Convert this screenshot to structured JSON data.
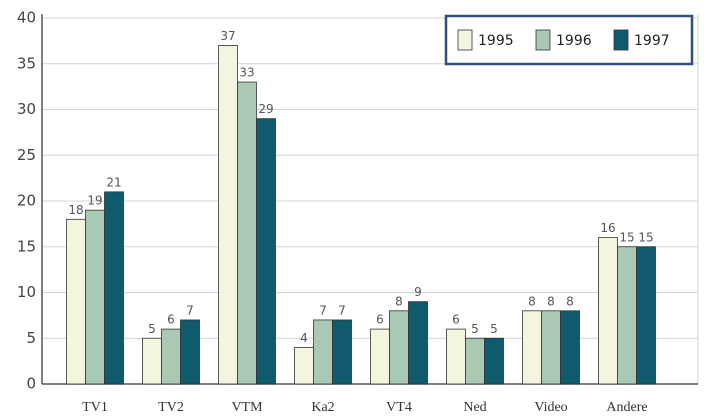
{
  "chart_data": {
    "type": "bar",
    "categories": [
      "TV1",
      "TV2",
      "VTM",
      "Ka2",
      "VT4",
      "Ned",
      "Video",
      "Andere"
    ],
    "series": [
      {
        "name": "1995",
        "color": "#f3f5de",
        "values": [
          18,
          5,
          37,
          4,
          6,
          6,
          8,
          16
        ]
      },
      {
        "name": "1996",
        "color": "#a9c9b5",
        "values": [
          19,
          6,
          33,
          7,
          8,
          5,
          8,
          15
        ]
      },
      {
        "name": "1997",
        "color": "#0f5a6d",
        "values": [
          21,
          7,
          29,
          7,
          9,
          5,
          8,
          15
        ]
      }
    ],
    "ylim": [
      0,
      40
    ],
    "yticks": [
      0,
      5,
      10,
      15,
      20,
      25,
      30,
      35,
      40
    ],
    "grid": true,
    "legend": "top-right"
  }
}
